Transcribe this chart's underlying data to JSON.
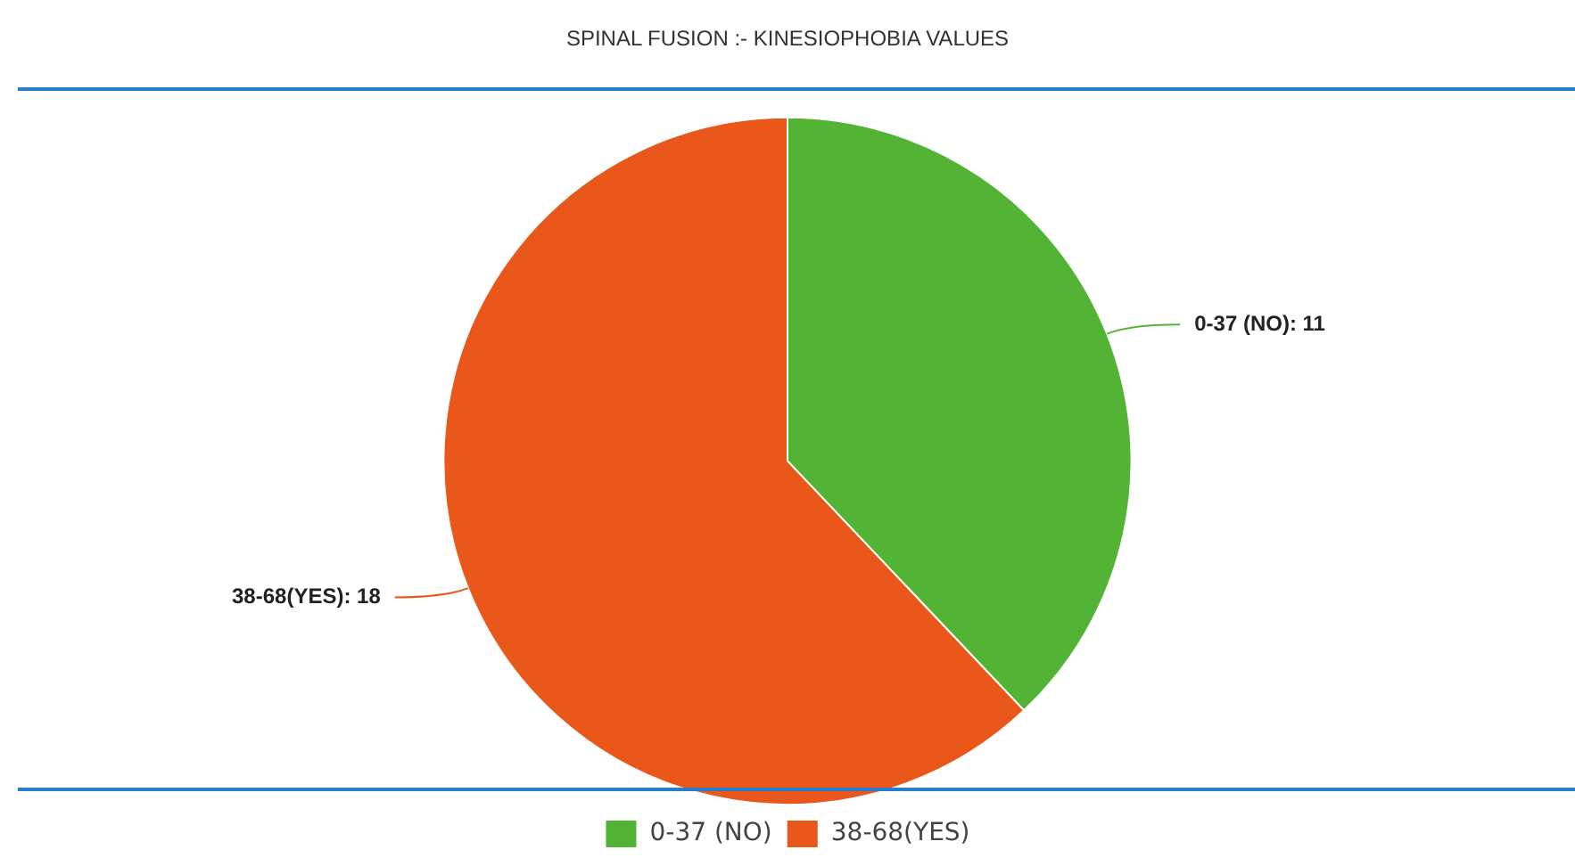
{
  "chart_data": {
    "type": "pie",
    "title": "SPINAL FUSION :- KINESIOPHOBIA VALUES",
    "categories": [
      "0-37 (NO)",
      "38-68(YES)"
    ],
    "values": [
      11,
      18
    ],
    "colors": [
      "#52b334",
      "#e9571b"
    ],
    "value_labels": [
      "0-37 (NO): 11",
      "38-68(YES): 18"
    ],
    "legend": "bottom"
  }
}
